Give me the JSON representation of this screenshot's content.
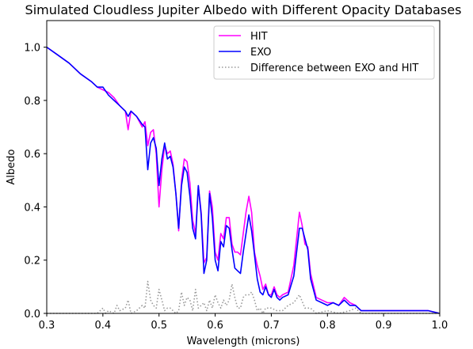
{
  "chart_data": {
    "type": "line",
    "title": "Simulated Cloudless Jupiter Albedo with Different Opacity Databases",
    "xlabel": "Wavelength (microns)",
    "ylabel": "Albedo",
    "xlim": [
      0.3,
      1.0
    ],
    "ylim": [
      0.0,
      1.1
    ],
    "xticks": [
      0.3,
      0.4,
      0.5,
      0.6,
      0.7,
      0.8,
      0.9,
      1.0
    ],
    "xtick_labels": [
      "0.3",
      "0.4",
      "0.5",
      "0.6",
      "0.7",
      "0.8",
      "0.9",
      "1.0"
    ],
    "yticks": [
      0.0,
      0.2,
      0.4,
      0.6,
      0.8,
      1.0
    ],
    "ytick_labels": [
      "0.0",
      "0.2",
      "0.4",
      "0.6",
      "0.8",
      "1.0"
    ],
    "grid": false,
    "legend_position": "top-right",
    "series": [
      {
        "name": "HIT",
        "color": "#ff00ff",
        "style": "solid",
        "x": [
          0.3,
          0.32,
          0.34,
          0.36,
          0.38,
          0.39,
          0.4,
          0.41,
          0.42,
          0.43,
          0.44,
          0.445,
          0.45,
          0.46,
          0.47,
          0.475,
          0.48,
          0.485,
          0.49,
          0.495,
          0.5,
          0.505,
          0.51,
          0.515,
          0.52,
          0.525,
          0.53,
          0.535,
          0.54,
          0.545,
          0.55,
          0.555,
          0.56,
          0.565,
          0.57,
          0.575,
          0.58,
          0.585,
          0.59,
          0.595,
          0.6,
          0.605,
          0.61,
          0.615,
          0.62,
          0.625,
          0.63,
          0.635,
          0.64,
          0.645,
          0.65,
          0.655,
          0.66,
          0.665,
          0.67,
          0.675,
          0.68,
          0.685,
          0.69,
          0.695,
          0.7,
          0.705,
          0.71,
          0.715,
          0.72,
          0.73,
          0.74,
          0.75,
          0.755,
          0.76,
          0.765,
          0.77,
          0.78,
          0.79,
          0.8,
          0.81,
          0.82,
          0.83,
          0.84,
          0.85,
          0.855,
          0.86,
          0.87,
          0.88,
          0.89,
          0.9,
          0.92,
          0.94,
          0.96,
          0.98,
          1.0
        ],
        "values": [
          1.0,
          0.97,
          0.94,
          0.9,
          0.87,
          0.85,
          0.84,
          0.83,
          0.81,
          0.78,
          0.76,
          0.69,
          0.76,
          0.74,
          0.7,
          0.72,
          0.63,
          0.68,
          0.69,
          0.6,
          0.4,
          0.54,
          0.63,
          0.6,
          0.61,
          0.56,
          0.45,
          0.31,
          0.5,
          0.58,
          0.57,
          0.49,
          0.35,
          0.3,
          0.48,
          0.38,
          0.19,
          0.21,
          0.46,
          0.4,
          0.23,
          0.2,
          0.3,
          0.28,
          0.36,
          0.36,
          0.26,
          0.23,
          0.23,
          0.22,
          0.3,
          0.38,
          0.44,
          0.38,
          0.23,
          0.18,
          0.14,
          0.09,
          0.11,
          0.07,
          0.07,
          0.1,
          0.07,
          0.06,
          0.07,
          0.08,
          0.18,
          0.38,
          0.33,
          0.26,
          0.25,
          0.15,
          0.06,
          0.05,
          0.04,
          0.04,
          0.03,
          0.06,
          0.04,
          0.03,
          0.02,
          0.01,
          0.01,
          0.01,
          0.01,
          0.01,
          0.01,
          0.01,
          0.01,
          0.01,
          0.0
        ]
      },
      {
        "name": "EXO",
        "color": "#0000ff",
        "style": "solid",
        "x": [
          0.3,
          0.32,
          0.34,
          0.36,
          0.38,
          0.39,
          0.4,
          0.41,
          0.42,
          0.43,
          0.44,
          0.445,
          0.45,
          0.46,
          0.47,
          0.475,
          0.48,
          0.485,
          0.49,
          0.495,
          0.5,
          0.505,
          0.51,
          0.515,
          0.52,
          0.525,
          0.53,
          0.535,
          0.54,
          0.545,
          0.55,
          0.555,
          0.56,
          0.565,
          0.57,
          0.575,
          0.58,
          0.585,
          0.59,
          0.595,
          0.6,
          0.605,
          0.61,
          0.615,
          0.62,
          0.625,
          0.63,
          0.635,
          0.64,
          0.645,
          0.65,
          0.655,
          0.66,
          0.665,
          0.67,
          0.675,
          0.68,
          0.685,
          0.69,
          0.695,
          0.7,
          0.705,
          0.71,
          0.715,
          0.72,
          0.73,
          0.74,
          0.75,
          0.755,
          0.76,
          0.765,
          0.77,
          0.78,
          0.79,
          0.8,
          0.81,
          0.82,
          0.83,
          0.84,
          0.85,
          0.855,
          0.86,
          0.87,
          0.88,
          0.89,
          0.9,
          0.92,
          0.94,
          0.96,
          0.98,
          1.0
        ],
        "values": [
          1.0,
          0.97,
          0.94,
          0.9,
          0.87,
          0.85,
          0.85,
          0.82,
          0.8,
          0.78,
          0.76,
          0.74,
          0.76,
          0.74,
          0.71,
          0.7,
          0.54,
          0.64,
          0.66,
          0.62,
          0.48,
          0.58,
          0.64,
          0.58,
          0.59,
          0.55,
          0.45,
          0.32,
          0.48,
          0.55,
          0.53,
          0.44,
          0.32,
          0.28,
          0.48,
          0.37,
          0.15,
          0.2,
          0.45,
          0.36,
          0.2,
          0.16,
          0.27,
          0.25,
          0.33,
          0.32,
          0.24,
          0.17,
          0.16,
          0.15,
          0.23,
          0.3,
          0.37,
          0.31,
          0.22,
          0.13,
          0.08,
          0.07,
          0.1,
          0.07,
          0.06,
          0.09,
          0.06,
          0.05,
          0.06,
          0.07,
          0.14,
          0.32,
          0.32,
          0.28,
          0.24,
          0.13,
          0.05,
          0.04,
          0.03,
          0.04,
          0.03,
          0.05,
          0.03,
          0.03,
          0.02,
          0.01,
          0.01,
          0.01,
          0.01,
          0.01,
          0.01,
          0.01,
          0.01,
          0.01,
          0.0
        ]
      },
      {
        "name": "Difference between EXO and HIT",
        "color": "#999999",
        "style": "dotted",
        "x": [
          0.3,
          0.34,
          0.38,
          0.39,
          0.4,
          0.405,
          0.41,
          0.42,
          0.425,
          0.43,
          0.44,
          0.445,
          0.45,
          0.46,
          0.47,
          0.475,
          0.48,
          0.485,
          0.49,
          0.495,
          0.5,
          0.505,
          0.51,
          0.515,
          0.52,
          0.525,
          0.53,
          0.535,
          0.54,
          0.545,
          0.55,
          0.555,
          0.56,
          0.565,
          0.57,
          0.575,
          0.58,
          0.585,
          0.59,
          0.595,
          0.6,
          0.605,
          0.61,
          0.615,
          0.62,
          0.625,
          0.63,
          0.635,
          0.64,
          0.645,
          0.65,
          0.655,
          0.66,
          0.665,
          0.67,
          0.675,
          0.68,
          0.685,
          0.69,
          0.7,
          0.71,
          0.72,
          0.73,
          0.74,
          0.75,
          0.76,
          0.77,
          0.78,
          0.8,
          0.82,
          0.84,
          0.85,
          0.86,
          0.88,
          0.9,
          0.92,
          0.94,
          0.96,
          0.98,
          1.0
        ],
        "values": [
          0.0,
          0.0,
          0.0,
          0.0,
          0.02,
          0.0,
          0.01,
          0.0,
          0.03,
          0.01,
          0.02,
          0.05,
          0.0,
          0.01,
          0.03,
          0.02,
          0.12,
          0.05,
          0.03,
          0.02,
          0.09,
          0.05,
          0.01,
          0.02,
          0.02,
          0.01,
          0.0,
          0.01,
          0.08,
          0.03,
          0.06,
          0.05,
          0.01,
          0.09,
          0.02,
          0.03,
          0.04,
          0.01,
          0.05,
          0.02,
          0.07,
          0.04,
          0.02,
          0.05,
          0.03,
          0.05,
          0.11,
          0.06,
          0.02,
          0.02,
          0.06,
          0.07,
          0.07,
          0.08,
          0.05,
          0.01,
          0.02,
          0.0,
          0.02,
          0.02,
          0.01,
          0.01,
          0.03,
          0.04,
          0.07,
          0.02,
          0.02,
          0.0,
          0.01,
          0.0,
          0.01,
          0.02,
          0.0,
          0.0,
          0.0,
          0.0,
          0.0,
          0.0,
          0.0,
          0.0
        ]
      }
    ]
  }
}
